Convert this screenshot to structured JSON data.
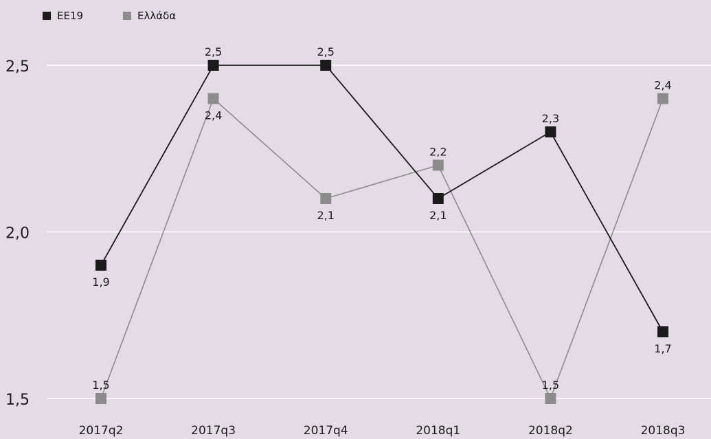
{
  "chart_data": {
    "type": "line",
    "categories": [
      "2017q2",
      "2017q3",
      "2017q4",
      "2018q1",
      "2018q2",
      "2018q3"
    ],
    "series": [
      {
        "name": "ΕΕ19",
        "color": "#1a1a1a",
        "values": [
          1.9,
          2.5,
          2.5,
          2.1,
          2.3,
          1.7
        ],
        "labels": [
          "1,9",
          "2,5",
          "2,5",
          "2,1",
          "2,3",
          "1,7"
        ],
        "label_pos": [
          "below",
          "above",
          "above",
          "below",
          "above",
          "below"
        ]
      },
      {
        "name": "Ελλάδα",
        "color": "#8c8c8c",
        "values": [
          1.5,
          2.4,
          2.1,
          2.2,
          1.5,
          2.4
        ],
        "labels": [
          "1,5",
          "2,4",
          "2,1",
          "2,2",
          "1,5",
          "2,4"
        ],
        "label_pos": [
          "above",
          "below",
          "below",
          "above",
          "above",
          "above"
        ]
      }
    ],
    "y_ticks": [
      1.5,
      2.0,
      2.5
    ],
    "y_tick_labels": [
      "1,5",
      "2,0",
      "2,5"
    ],
    "ylim": [
      1.5,
      2.5
    ],
    "grid": true,
    "legend_position": "top-left",
    "background": "#e4dbe6",
    "gridline_color": "#ffffff"
  }
}
